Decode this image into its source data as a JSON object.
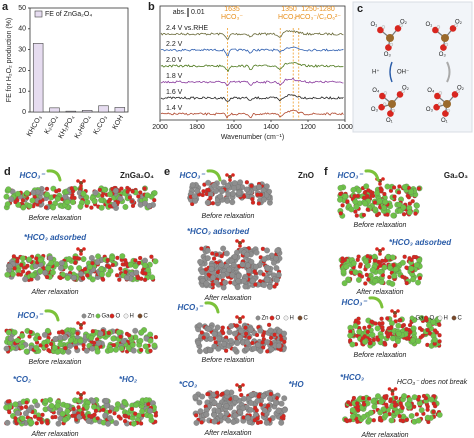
{
  "chart_data": [
    {
      "type": "bar",
      "panel_label": "a",
      "ylabel": "FE for H₂O₂ production (%)",
      "legend": "FE of ZnGa₂O₄",
      "categories": [
        "KHCO₃",
        "K₂SO₄",
        "KH₂PO₄",
        "K₂HPO₄",
        "K₂CO₃",
        "KOH"
      ],
      "values": [
        33,
        2,
        0.4,
        0.8,
        3,
        2.2
      ],
      "color": "#e6dcf0",
      "edge_color": "#444",
      "ylim": [
        0,
        50
      ],
      "yticks": [
        0,
        10,
        20,
        30,
        40,
        50
      ]
    },
    {
      "type": "spectra",
      "panel_label": "b",
      "xlabel": "Wavenumber (cm⁻¹)",
      "xlim": [
        2000,
        1000
      ],
      "xticks": [
        2000,
        1800,
        1600,
        1400,
        1200,
        1000
      ],
      "scale_label": "abs.",
      "scale_value": "0.01",
      "traces": [
        {
          "name": "2.4 V vs.RHE",
          "color": "#6b6b3a"
        },
        {
          "name": "2.2 V",
          "color": "#2f5fb0"
        },
        {
          "name": "2.0 V",
          "color": "#4f7a1f"
        },
        {
          "name": "1.8 V",
          "color": "#8a3c9e"
        },
        {
          "name": "1.6 V",
          "color": "#222222"
        },
        {
          "name": "1.4 V",
          "color": "#b0482e"
        }
      ],
      "reference_lines": [
        1635,
        1350,
        1280,
        1250
      ],
      "reference_color": "#f0a030",
      "annotations": [
        "1635",
        "HCO₃⁻",
        "1350",
        "HCO₃⁻",
        "1250-1280",
        "HCO₃⁻/C₂O₆²⁻"
      ]
    }
  ],
  "panel_c": {
    "label": "c",
    "atom_labels": [
      "O₁",
      "O₂",
      "O₃",
      "O₁",
      "O₂",
      "O₃",
      "O₄",
      "O₂",
      "O₁",
      "O₃",
      "O₄",
      "O₂",
      "O₁",
      "O₃"
    ],
    "arrow_labels": [
      "H⁺",
      "OH⁻"
    ]
  },
  "panel_d": {
    "label": "d",
    "title": "ZnGa₂O₄",
    "texts": [
      "HCO₃⁻",
      "Before relaxation",
      "*HCO₃ adsorbed",
      "After relaxation",
      "HCO₃⁻",
      "Before relaxation",
      "*CO₂",
      "*HO₂",
      "After relaxation"
    ],
    "legend": [
      "Zn",
      "Ga",
      "O",
      "H",
      "C"
    ]
  },
  "panel_e": {
    "label": "e",
    "title": "ZnO",
    "texts": [
      "HCO₃⁻",
      "Before relaxation",
      "*HCO₃ adsorbed",
      "After relaxation",
      "HCO₃⁻",
      "Before relaxation",
      "*CO₃",
      "*HO",
      "After relaxation"
    ],
    "legend": [
      "Zn",
      "O",
      "H",
      "C"
    ]
  },
  "panel_f": {
    "label": "f",
    "title": "Ga₂O₃",
    "texts": [
      "HCO₃⁻",
      "Before relaxation",
      "*HCO₃ adsorbed",
      "After relaxation",
      "HCO₃⁻",
      "Before relaxation",
      "*HCO₃",
      "HCO₃⁻ does not break",
      "After relaxation"
    ],
    "legend": [
      "Ga",
      "O",
      "H",
      "C"
    ]
  }
}
